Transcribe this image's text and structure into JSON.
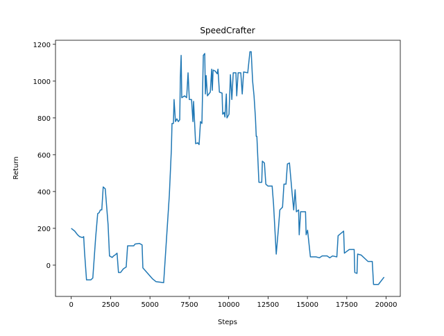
{
  "chart_data": {
    "type": "line",
    "title": "SpeedCrafter",
    "x_label": "Steps",
    "y_label": "Return",
    "xlim": [
      -1000,
      20900
    ],
    "ylim": [
      -170,
      1222
    ],
    "xticks": [
      0,
      2500,
      5000,
      7500,
      10000,
      12500,
      15000,
      17500,
      20000
    ],
    "yticks": [
      0,
      200,
      400,
      600,
      800,
      1000,
      1200
    ],
    "grid": false,
    "series": [
      {
        "color": "#1f77b4",
        "x": [
          0,
          220,
          400,
          530,
          710,
          790,
          840,
          970,
          1240,
          1370,
          1550,
          1680,
          1770,
          1850,
          1940,
          2030,
          2160,
          2340,
          2430,
          2600,
          2690,
          2780,
          2910,
          3000,
          3130,
          3310,
          3490,
          3580,
          3750,
          3970,
          4060,
          4330,
          4500,
          4550,
          4860,
          5170,
          5390,
          5870,
          6230,
          6360,
          6400,
          6490,
          6530,
          6620,
          6710,
          6800,
          6890,
          6930,
          6980,
          7020,
          7200,
          7330,
          7420,
          7500,
          7640,
          7730,
          7770,
          7900,
          8040,
          8120,
          8210,
          8300,
          8390,
          8480,
          8520,
          8570,
          8650,
          8830,
          8920,
          8960,
          9010,
          9140,
          9270,
          9320,
          9410,
          9580,
          9620,
          9710,
          9760,
          9850,
          9890,
          10020,
          10110,
          10200,
          10290,
          10460,
          10510,
          10600,
          10770,
          10860,
          10950,
          11210,
          11350,
          11430,
          11520,
          11610,
          11700,
          11750,
          11790,
          11920,
          12100,
          12140,
          12270,
          12360,
          12490,
          12760,
          12850,
          13020,
          13160,
          13250,
          13420,
          13510,
          13640,
          13730,
          13860,
          14040,
          14130,
          14220,
          14300,
          14440,
          14480,
          14570,
          14880,
          14920,
          15010,
          15190,
          15540,
          15760,
          15940,
          16250,
          16420,
          16600,
          16870,
          16950,
          17300,
          17350,
          17660,
          17970,
          18010,
          18150,
          18190,
          18410,
          18850,
          19120,
          19200,
          19510,
          19870
        ],
        "values": [
          200,
          185,
          165,
          155,
          150,
          155,
          75,
          -80,
          -80,
          -70,
          150,
          280,
          285,
          300,
          300,
          425,
          415,
          220,
          50,
          42,
          50,
          55,
          65,
          -40,
          -40,
          -20,
          -10,
          105,
          105,
          105,
          115,
          118,
          110,
          -15,
          -45,
          -75,
          -90,
          -95,
          380,
          630,
          770,
          770,
          900,
          780,
          795,
          780,
          790,
          1020,
          1140,
          910,
          920,
          910,
          1045,
          900,
          900,
          780,
          890,
          660,
          665,
          655,
          780,
          770,
          1140,
          1150,
          930,
          1030,
          920,
          940,
          1065,
          950,
          1060,
          1055,
          1040,
          1065,
          940,
          935,
          820,
          830,
          805,
          930,
          800,
          820,
          1035,
          900,
          1045,
          1045,
          920,
          1045,
          1045,
          930,
          1050,
          1045,
          1160,
          1160,
          1000,
          920,
          800,
          700,
          700,
          450,
          450,
          565,
          555,
          440,
          430,
          430,
          330,
          60,
          200,
          300,
          315,
          440,
          440,
          550,
          555,
          380,
          300,
          410,
          290,
          300,
          165,
          290,
          290,
          165,
          190,
          45,
          45,
          40,
          50,
          50,
          40,
          50,
          45,
          160,
          185,
          65,
          85,
          85,
          -40,
          -45,
          60,
          55,
          20,
          20,
          -105,
          -105,
          -65
        ]
      }
    ]
  }
}
